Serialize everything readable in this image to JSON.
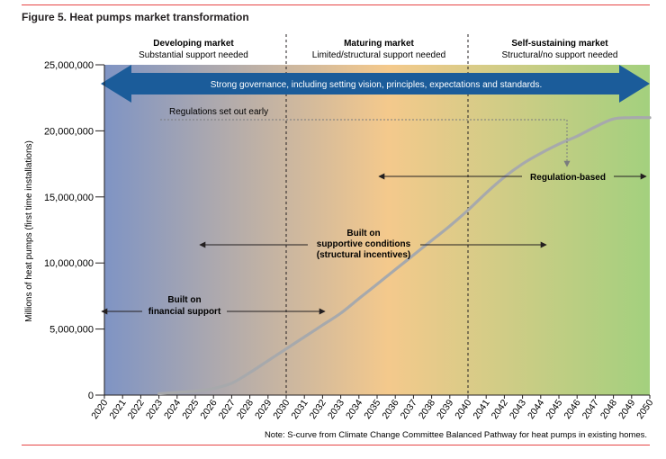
{
  "figure": {
    "title": "Figure 5. Heat pumps market transformation",
    "note": "Note: S-curve from Climate Change Committee Balanced Pathway for heat pumps in existing homes."
  },
  "phases": [
    {
      "title": "Developing market",
      "subtitle": "Substantial support needed",
      "from_year": 2020,
      "to_year": 2030
    },
    {
      "title": "Maturing market",
      "subtitle": "Limited/structural support needed",
      "from_year": 2030,
      "to_year": 2040
    },
    {
      "title": "Self-sustaining market",
      "subtitle": "Structural/no support needed",
      "from_year": 2040,
      "to_year": 2050
    }
  ],
  "banner": {
    "text": "Strong governance, including setting vision, principles, expectations and standards."
  },
  "annotations": {
    "regulations_early": "Regulations set out early",
    "regulation_based": "Regulation-based",
    "supportive_line1": "Built on",
    "supportive_line2": "supportive conditions",
    "supportive_line3": "(structural incentives)",
    "financial_line1": "Built on",
    "financial_line2": "financial support"
  },
  "colors": {
    "background_start": "#7f94c4",
    "background_mid": "#f4c98c",
    "background_end": "#a3d07e",
    "banner": "#1b5c9a",
    "curve": "#a7a9ac",
    "divider": "#231f20",
    "accent_line": "#e64545"
  },
  "chart_data": {
    "type": "line",
    "ylabel": "Millions of heat pumps (first time installations)",
    "xlabel": "",
    "ylim": [
      0,
      25000000
    ],
    "xlim": [
      2020,
      2050
    ],
    "y_ticks": [
      0,
      5000000,
      10000000,
      15000000,
      20000000,
      25000000
    ],
    "y_tick_labels": [
      "0",
      "5,000,000",
      "10,000,000",
      "15,000,000",
      "20,000,000",
      "25,000,000"
    ],
    "x_ticks": [
      2020,
      2021,
      2022,
      2023,
      2024,
      2025,
      2026,
      2027,
      2028,
      2029,
      2030,
      2031,
      2032,
      2033,
      2034,
      2035,
      2036,
      2037,
      2038,
      2039,
      2040,
      2041,
      2042,
      2043,
      2044,
      2045,
      2046,
      2047,
      2048,
      2049,
      2050
    ],
    "x_tick_labels": [
      "2020",
      "2021",
      "2022",
      "2023",
      "2024",
      "2025",
      "2026",
      "2027",
      "2028",
      "2029",
      "2030",
      "2031",
      "2032",
      "2033",
      "2034",
      "2035",
      "2036",
      "2037",
      "2038",
      "2039",
      "2040",
      "2041",
      "2042",
      "2043",
      "2044",
      "2045",
      "2046",
      "2047",
      "2048",
      "2049",
      "2050"
    ],
    "grid": false,
    "vertical_dividers": [
      2030,
      2040
    ],
    "series": [
      {
        "x": [
          2023,
          2024,
          2025,
          2026,
          2027,
          2028,
          2029,
          2030,
          2031,
          2032,
          2033,
          2034,
          2035,
          2036,
          2037,
          2038,
          2039,
          2040,
          2041,
          2042,
          2043,
          2044,
          2045,
          2046,
          2047,
          2048,
          2049,
          2050
        ],
        "values": [
          100000,
          200000,
          300000,
          500000,
          900000,
          1700000,
          2600000,
          3500000,
          4400000,
          5300000,
          6200000,
          7300000,
          8400000,
          9500000,
          10600000,
          11700000,
          12800000,
          14000000,
          15300000,
          16500000,
          17500000,
          18300000,
          19000000,
          19600000,
          20300000,
          20900000,
          21000000,
          21000000
        ]
      }
    ]
  }
}
